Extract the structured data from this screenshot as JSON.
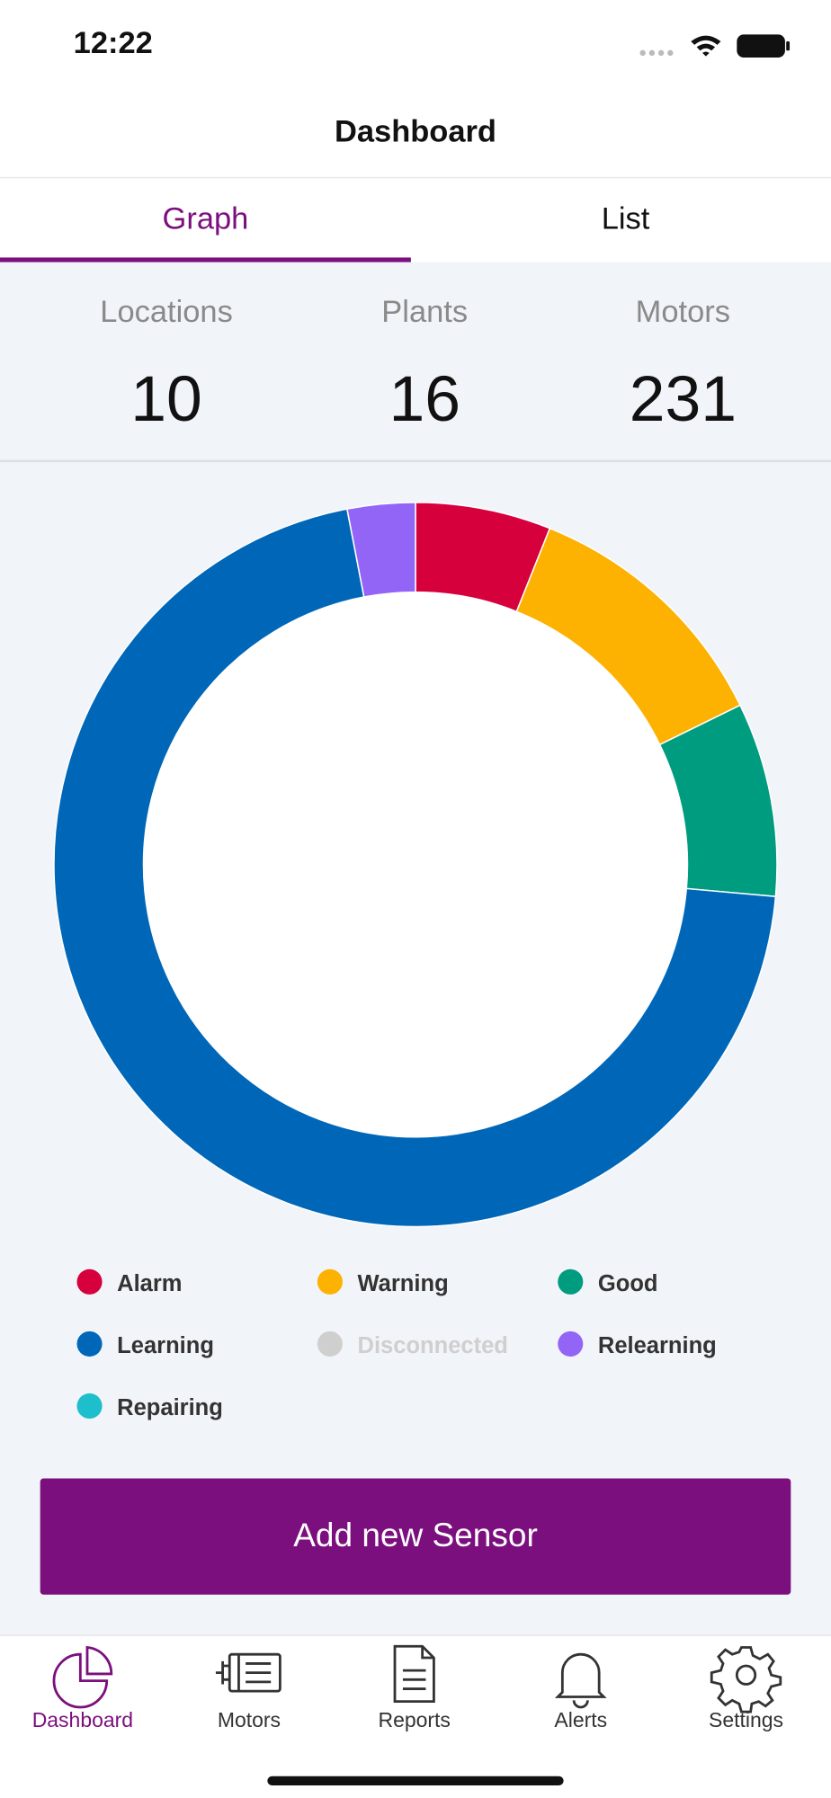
{
  "status_bar": {
    "time": "12:22"
  },
  "header": {
    "title": "Dashboard"
  },
  "tabs": [
    {
      "label": "Graph",
      "active": true
    },
    {
      "label": "List",
      "active": false
    }
  ],
  "stats": [
    {
      "label": "Locations",
      "value": 10
    },
    {
      "label": "Plants",
      "value": 16
    },
    {
      "label": "Motors",
      "value": 231
    }
  ],
  "chart_data": {
    "type": "donut",
    "categories": [
      "Alarm",
      "Warning",
      "Good",
      "Learning",
      "Disconnected",
      "Relearning",
      "Repairing"
    ],
    "values": [
      14,
      27,
      20,
      163,
      0,
      7,
      0
    ],
    "colors": [
      "#d6003c",
      "#fdb100",
      "#009c7f",
      "#0067b8",
      "#c9c9c9",
      "#9365f7",
      "#1cbfcb"
    ],
    "disabled": [
      false,
      false,
      false,
      false,
      true,
      false,
      false
    ]
  },
  "button": {
    "label": "Add new Sensor"
  },
  "nav": [
    {
      "label": "Dashboard",
      "active": true
    },
    {
      "label": "Motors",
      "active": false
    },
    {
      "label": "Reports",
      "active": false
    },
    {
      "label": "Alerts",
      "active": false
    },
    {
      "label": "Settings",
      "active": false
    }
  ]
}
